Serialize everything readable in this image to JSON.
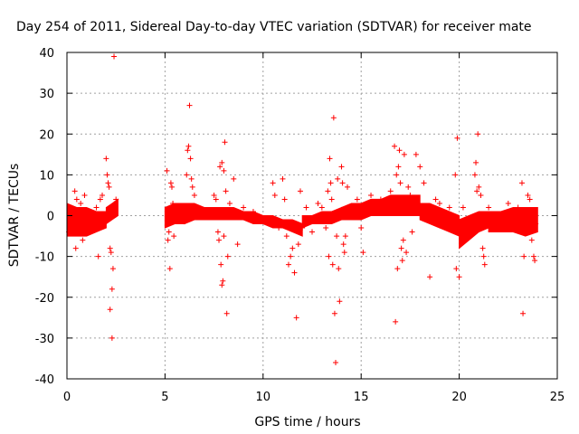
{
  "chart_data": {
    "type": "scatter",
    "title": "Day 254 of 2011, Sidereal Day-to-day VTEC variation (SDTVAR) for receiver mate",
    "xlabel": "GPS time / hours",
    "ylabel": "SDTVAR / TECUs",
    "xlim": [
      0,
      25
    ],
    "ylim": [
      -40,
      40
    ],
    "xticks": [
      0,
      5,
      10,
      15,
      20,
      25
    ],
    "yticks": [
      -40,
      -30,
      -20,
      -10,
      0,
      10,
      20,
      30,
      40
    ],
    "grid": true,
    "marker": "plus",
    "colors": {
      "series": "#ff0000",
      "grid": "#a0a0a0",
      "axis": "#000000"
    },
    "series": [
      {
        "name": "SDTVAR",
        "bands": [
          {
            "x_start": 0.0,
            "x_end": 2.0,
            "y_low": [
              -5,
              -5,
              -5,
              -4,
              -3
            ],
            "y_high": [
              3,
              2,
              2,
              1,
              1
            ]
          },
          {
            "x_start": 2.0,
            "x_end": 2.6,
            "y_low": [
              -2,
              -1,
              0
            ],
            "y_high": [
              2,
              3,
              4
            ]
          },
          {
            "x_start": 5.0,
            "x_end": 6.0,
            "y_low": [
              -3,
              -2,
              -2
            ],
            "y_high": [
              2,
              3,
              3
            ]
          },
          {
            "x_start": 6.0,
            "x_end": 8.0,
            "y_low": [
              -2,
              -1,
              -1,
              -1,
              -1
            ],
            "y_high": [
              3,
              3,
              2,
              2,
              2
            ]
          },
          {
            "x_start": 8.0,
            "x_end": 10.0,
            "y_low": [
              -1,
              -1,
              -1,
              -2,
              -2
            ],
            "y_high": [
              2,
              2,
              1,
              1,
              0
            ]
          },
          {
            "x_start": 10.0,
            "x_end": 12.0,
            "y_low": [
              -2,
              -3,
              -3,
              -4,
              -5
            ],
            "y_high": [
              0,
              0,
              -1,
              -1,
              -2
            ]
          },
          {
            "x_start": 12.0,
            "x_end": 14.0,
            "y_low": [
              -3,
              -2,
              -2,
              -2,
              -1
            ],
            "y_high": [
              0,
              0,
              1,
              1,
              2
            ]
          },
          {
            "x_start": 14.0,
            "x_end": 16.0,
            "y_low": [
              -1,
              -1,
              -1,
              0,
              0
            ],
            "y_high": [
              2,
              3,
              3,
              4,
              4
            ]
          },
          {
            "x_start": 16.0,
            "x_end": 18.0,
            "y_low": [
              0,
              0,
              0,
              0,
              0
            ],
            "y_high": [
              4,
              5,
              5,
              5,
              5
            ]
          },
          {
            "x_start": 18.0,
            "x_end": 20.0,
            "y_low": [
              -1,
              -2,
              -3,
              -4,
              -5
            ],
            "y_high": [
              3,
              3,
              2,
              1,
              0
            ]
          },
          {
            "x_start": 20.0,
            "x_end": 21.5,
            "y_low": [
              -8,
              -6,
              -4,
              -3
            ],
            "y_high": [
              -1,
              0,
              1,
              1
            ]
          },
          {
            "x_start": 21.5,
            "x_end": 24.0,
            "y_low": [
              -4,
              -4,
              -4,
              -5,
              -4
            ],
            "y_high": [
              1,
              1,
              2,
              2,
              2
            ]
          }
        ],
        "points": [
          [
            0.1,
            -4
          ],
          [
            0.2,
            2
          ],
          [
            0.3,
            1
          ],
          [
            0.35,
            -3
          ],
          [
            0.4,
            6
          ],
          [
            0.45,
            -8
          ],
          [
            0.5,
            4
          ],
          [
            0.6,
            -2
          ],
          [
            0.7,
            3
          ],
          [
            0.8,
            -6
          ],
          [
            0.9,
            5
          ],
          [
            1.0,
            -4
          ],
          [
            1.5,
            2
          ],
          [
            1.6,
            -10
          ],
          [
            1.7,
            4
          ],
          [
            1.8,
            5
          ],
          [
            2.0,
            14
          ],
          [
            2.05,
            10
          ],
          [
            2.1,
            8
          ],
          [
            2.15,
            7
          ],
          [
            2.2,
            -8
          ],
          [
            2.2,
            -23
          ],
          [
            2.25,
            -9
          ],
          [
            2.3,
            -30
          ],
          [
            2.3,
            -18
          ],
          [
            2.35,
            -13
          ],
          [
            2.4,
            39
          ],
          [
            2.45,
            3
          ],
          [
            2.5,
            4
          ],
          [
            5.1,
            11
          ],
          [
            5.15,
            -6
          ],
          [
            5.2,
            -4
          ],
          [
            5.25,
            -13
          ],
          [
            5.3,
            8
          ],
          [
            5.35,
            7
          ],
          [
            5.4,
            3
          ],
          [
            5.45,
            -5
          ],
          [
            5.5,
            1
          ],
          [
            5.6,
            2
          ],
          [
            6.1,
            10
          ],
          [
            6.15,
            16
          ],
          [
            6.2,
            17
          ],
          [
            6.25,
            27
          ],
          [
            6.3,
            14
          ],
          [
            6.35,
            9
          ],
          [
            6.4,
            7
          ],
          [
            6.5,
            5
          ],
          [
            7.5,
            5
          ],
          [
            7.6,
            4
          ],
          [
            7.7,
            -4
          ],
          [
            7.75,
            -6
          ],
          [
            7.8,
            12
          ],
          [
            7.85,
            -12
          ],
          [
            7.9,
            13
          ],
          [
            7.9,
            -17
          ],
          [
            7.95,
            -16
          ],
          [
            8.0,
            11
          ],
          [
            8.0,
            -5
          ],
          [
            8.05,
            18
          ],
          [
            8.1,
            6
          ],
          [
            8.15,
            -24
          ],
          [
            8.2,
            -10
          ],
          [
            8.3,
            3
          ],
          [
            8.5,
            9
          ],
          [
            8.7,
            -7
          ],
          [
            9.0,
            2
          ],
          [
            9.5,
            1
          ],
          [
            10.5,
            8
          ],
          [
            10.6,
            5
          ],
          [
            10.8,
            -3
          ],
          [
            11.0,
            9
          ],
          [
            11.1,
            4
          ],
          [
            11.2,
            -5
          ],
          [
            11.3,
            -12
          ],
          [
            11.4,
            -10
          ],
          [
            11.5,
            -8
          ],
          [
            11.6,
            -14
          ],
          [
            11.7,
            -25
          ],
          [
            11.8,
            -7
          ],
          [
            11.9,
            6
          ],
          [
            12.0,
            -3
          ],
          [
            12.2,
            2
          ],
          [
            12.5,
            -4
          ],
          [
            12.8,
            3
          ],
          [
            13.0,
            2
          ],
          [
            13.2,
            -3
          ],
          [
            13.3,
            6
          ],
          [
            13.35,
            -10
          ],
          [
            13.4,
            14
          ],
          [
            13.45,
            8
          ],
          [
            13.5,
            4
          ],
          [
            13.55,
            -12
          ],
          [
            13.6,
            24
          ],
          [
            13.65,
            -24
          ],
          [
            13.7,
            -36
          ],
          [
            13.75,
            -5
          ],
          [
            13.8,
            9
          ],
          [
            13.85,
            -13
          ],
          [
            13.9,
            -21
          ],
          [
            14.0,
            12
          ],
          [
            14.05,
            8
          ],
          [
            14.1,
            -7
          ],
          [
            14.15,
            -9
          ],
          [
            14.2,
            -5
          ],
          [
            14.3,
            7
          ],
          [
            14.5,
            2
          ],
          [
            14.8,
            4
          ],
          [
            15.0,
            -3
          ],
          [
            15.1,
            -9
          ],
          [
            15.3,
            3
          ],
          [
            15.5,
            5
          ],
          [
            15.8,
            2
          ],
          [
            16.0,
            4
          ],
          [
            16.2,
            3
          ],
          [
            16.5,
            6
          ],
          [
            16.7,
            17
          ],
          [
            16.75,
            -26
          ],
          [
            16.8,
            10
          ],
          [
            16.85,
            -13
          ],
          [
            16.9,
            12
          ],
          [
            16.95,
            16
          ],
          [
            17.0,
            8
          ],
          [
            17.05,
            -8
          ],
          [
            17.1,
            -11
          ],
          [
            17.15,
            -6
          ],
          [
            17.2,
            15
          ],
          [
            17.3,
            -9
          ],
          [
            17.4,
            7
          ],
          [
            17.5,
            5
          ],
          [
            17.6,
            -4
          ],
          [
            17.8,
            15
          ],
          [
            18.0,
            12
          ],
          [
            18.2,
            8
          ],
          [
            18.5,
            -15
          ],
          [
            18.8,
            4
          ],
          [
            19.0,
            3
          ],
          [
            19.5,
            2
          ],
          [
            19.8,
            10
          ],
          [
            19.85,
            -13
          ],
          [
            19.9,
            19
          ],
          [
            20.0,
            -15
          ],
          [
            20.2,
            2
          ],
          [
            20.5,
            -5
          ],
          [
            20.8,
            10
          ],
          [
            20.85,
            13
          ],
          [
            20.9,
            6
          ],
          [
            20.95,
            20
          ],
          [
            21.0,
            7
          ],
          [
            21.1,
            5
          ],
          [
            21.2,
            -8
          ],
          [
            21.25,
            -10
          ],
          [
            21.3,
            -12
          ],
          [
            21.5,
            2
          ],
          [
            22.0,
            -3
          ],
          [
            22.5,
            3
          ],
          [
            23.0,
            2
          ],
          [
            23.2,
            8
          ],
          [
            23.25,
            -24
          ],
          [
            23.3,
            -10
          ],
          [
            23.5,
            5
          ],
          [
            23.6,
            4
          ],
          [
            23.7,
            -6
          ],
          [
            23.8,
            -10
          ],
          [
            23.85,
            -11
          ],
          [
            23.9,
            -2
          ]
        ]
      }
    ]
  }
}
